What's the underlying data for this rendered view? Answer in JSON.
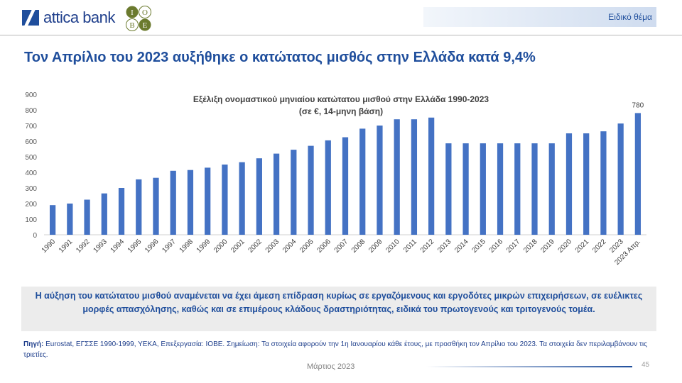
{
  "header": {
    "brand": "attica bank",
    "partner_logo": "IOBE",
    "section_label": "Ειδικό θέμα"
  },
  "title": "Τον Απρίλιο του 2023 αυξήθηκε ο κατώτατος μισθός στην Ελλάδα κατά 9,4%",
  "chart_data": {
    "type": "bar",
    "title": "Εξέλιξη ονομαστικού μηνιαίου κατώτατου μισθού στην Ελλάδα 1990-2023",
    "subtitle": "(σε €, 14-μηνη βάση)",
    "categories": [
      "1990",
      "1991",
      "1992",
      "1993",
      "1994",
      "1995",
      "1996",
      "1997",
      "1998",
      "1999",
      "2000",
      "2001",
      "2002",
      "2003",
      "2004",
      "2005",
      "2006",
      "2007",
      "2008",
      "2009",
      "2010",
      "2011",
      "2012",
      "2013",
      "2014",
      "2015",
      "2016",
      "2017",
      "2018",
      "2019",
      "2020",
      "2021",
      "2022",
      "2023",
      "2023 Απρ."
    ],
    "values": [
      190,
      200,
      225,
      265,
      300,
      355,
      365,
      410,
      415,
      430,
      450,
      465,
      490,
      520,
      545,
      570,
      605,
      625,
      680,
      700,
      740,
      740,
      751,
      586,
      586,
      586,
      586,
      586,
      586,
      586,
      650,
      650,
      663,
      713,
      780
    ],
    "data_labels": {
      "2023 Απρ.": "780"
    },
    "yticks": [
      0,
      100,
      200,
      300,
      400,
      500,
      600,
      700,
      800,
      900
    ],
    "ylim": [
      0,
      900
    ],
    "grid": false,
    "bar_color": "#4472c4"
  },
  "note_box": "Η αύξηση του κατώτατου μισθού αναμένεται να έχει άμεση επίδραση κυρίως σε εργαζόμενους και εργοδότες μικρών επιχειρήσεων, σε ευέλικτες μορφές απασχόλησης, καθώς και σε επιμέρους κλάδους δραστηριότητας, ειδικά του πρωτογενούς και τριτογενούς τομέα.",
  "source": {
    "label": "Πηγή:",
    "text": "Eurostat, ΕΓΣΣΕ 1990-1999, ΥΕΚΑ, Επεξεργασία: ΙΟΒΕ. Σημείωση: Τα στοιχεία αφορούν την 1η Ιανουαρίου κάθε έτους, με προσθήκη τον Απρίλιο του 2023. Τα στοιχεία δεν περιλαμβάνουν τις τριετίες."
  },
  "footer": {
    "date": "Μάρτιος 2023",
    "page": "45"
  }
}
